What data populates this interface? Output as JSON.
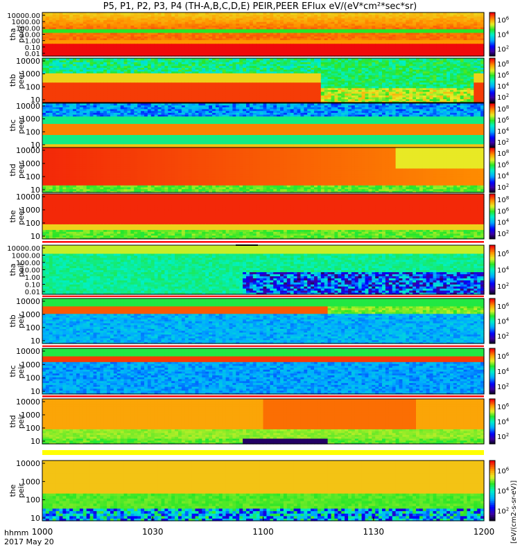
{
  "figure": {
    "title": "P5, P1, P2, P3, P4 (TH-A,B,C,D,E) PEIR,PEER EFlux eV/(eV*cm²*sec*sr)",
    "colorbar_unit_label": "[eV/(cm2-s-sr-eV)]",
    "time_axis": {
      "label_top": "hhmm",
      "label_bottom": "2017 May 20",
      "ticks": [
        "1000",
        "1030",
        "1100",
        "1130",
        "1200"
      ]
    },
    "colors": {
      "flag_red": "#ff0000",
      "flag_yellow": "#ffff00",
      "flag_black": "#000000"
    }
  },
  "chart_data": [
    {
      "type": "heatmap",
      "probe": "tha",
      "instrument": "peer",
      "ylabel": [
        "tha",
        "peer"
      ],
      "yscale": "log",
      "yticks": [
        "10000.00",
        "1000.00",
        "100.00",
        "10.00",
        "1.00",
        "0.10",
        "0.01"
      ],
      "colorbar_ticks": [
        "10^6",
        "10^4",
        "10^2"
      ],
      "profile": "tha_peer",
      "xrange": [
        "1000",
        "1200"
      ]
    },
    {
      "type": "heatmap",
      "probe": "thb",
      "instrument": "peer",
      "ylabel": [
        "thb",
        "peer"
      ],
      "yscale": "log",
      "yticks": [
        "10000",
        "1000",
        "100",
        "10"
      ],
      "colorbar_ticks": [
        "10^8",
        "10^6",
        "10^4",
        "10^2"
      ],
      "profile": "thb_peer",
      "xrange": [
        "1000",
        "1200"
      ]
    },
    {
      "type": "heatmap",
      "probe": "thc",
      "instrument": "peer",
      "ylabel": [
        "thc",
        "peer"
      ],
      "yscale": "log",
      "yticks": [
        "10000",
        "1000",
        "100",
        "10"
      ],
      "colorbar_ticks": [
        "10^8",
        "10^6",
        "10^4",
        "10^2"
      ],
      "profile": "thc_peer",
      "xrange": [
        "1000",
        "1200"
      ]
    },
    {
      "type": "heatmap",
      "probe": "thd",
      "instrument": "peer",
      "ylabel": [
        "thd",
        "peer"
      ],
      "yscale": "log",
      "yticks": [
        "10000",
        "1000",
        "100",
        "10"
      ],
      "colorbar_ticks": [
        "10^8",
        "10^6",
        "10^4",
        "10^2"
      ],
      "profile": "thd_peer",
      "xrange": [
        "1000",
        "1200"
      ]
    },
    {
      "type": "heatmap",
      "probe": "the",
      "instrument": "peer",
      "ylabel": [
        "the",
        "peer"
      ],
      "yscale": "log",
      "yticks": [
        "10000",
        "1000",
        "100",
        "10"
      ],
      "colorbar_ticks": [
        "10^8",
        "10^6",
        "10^4",
        "10^2"
      ],
      "profile": "the_peer",
      "xrange": [
        "1000",
        "1200"
      ]
    },
    {
      "type": "heatmap",
      "probe": "tha",
      "instrument": "peir",
      "ylabel": [
        "tha",
        "peir"
      ],
      "yscale": "log",
      "yticks": [
        "10000.00",
        "1000.00",
        "100.00",
        "10.00",
        "1.00",
        "0.10",
        "0.01"
      ],
      "colorbar_ticks": [
        "10^6",
        "10^4",
        "10^2"
      ],
      "profile": "tha_peir",
      "xrange": [
        "1000",
        "1200"
      ]
    },
    {
      "type": "heatmap",
      "probe": "thb",
      "instrument": "peir",
      "ylabel": [
        "thb",
        "peir"
      ],
      "yscale": "log",
      "yticks": [
        "10000",
        "1000",
        "100",
        "10"
      ],
      "colorbar_ticks": [
        "10^6",
        "10^4",
        "10^2"
      ],
      "profile": "thb_peir",
      "xrange": [
        "1000",
        "1200"
      ]
    },
    {
      "type": "heatmap",
      "probe": "thc",
      "instrument": "peir",
      "ylabel": [
        "thc",
        "peir"
      ],
      "yscale": "log",
      "yticks": [
        "10000",
        "1000",
        "100",
        "10"
      ],
      "colorbar_ticks": [
        "10^6",
        "10^4",
        "10^2"
      ],
      "profile": "thc_peir",
      "xrange": [
        "1000",
        "1200"
      ]
    },
    {
      "type": "heatmap",
      "probe": "thd",
      "instrument": "peir",
      "ylabel": [
        "thd",
        "peir"
      ],
      "yscale": "log",
      "yticks": [
        "10000",
        "1000",
        "100",
        "10"
      ],
      "colorbar_ticks": [
        "10^6",
        "10^4",
        "10^2"
      ],
      "profile": "thd_peir",
      "xrange": [
        "1000",
        "1200"
      ]
    },
    {
      "type": "heatmap",
      "probe": "the",
      "instrument": "peir",
      "ylabel": [
        "the",
        "peir"
      ],
      "yscale": "log",
      "yticks": [
        "10000",
        "1000",
        "100",
        "10"
      ],
      "colorbar_ticks": [
        "10^6",
        "10^4",
        "10^2"
      ],
      "profile": "the_peir",
      "xrange": [
        "1000",
        "1200"
      ]
    }
  ]
}
